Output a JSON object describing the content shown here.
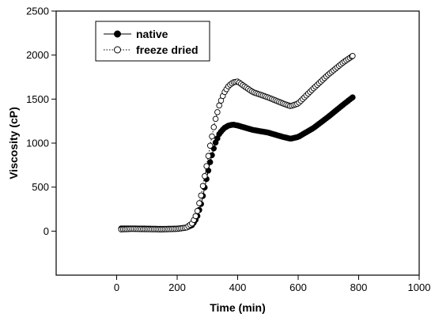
{
  "chart_data": {
    "type": "line",
    "xlabel": "Time (min)",
    "ylabel": "Viscosity (cP)",
    "xlim": [
      -200,
      1000
    ],
    "ylim": [
      -500,
      2500
    ],
    "xticks": [
      0,
      200,
      400,
      600,
      800,
      1000
    ],
    "yticks": [
      0,
      500,
      1000,
      1500,
      2000,
      2500
    ],
    "grid": false,
    "legend_position": "top-left",
    "series": [
      {
        "name": "native",
        "marker": "filled-circle",
        "line": "solid",
        "color": "#000000",
        "points": [
          [
            15,
            30
          ],
          [
            50,
            30
          ],
          [
            100,
            28
          ],
          [
            150,
            25
          ],
          [
            200,
            28
          ],
          [
            230,
            40
          ],
          [
            250,
            70
          ],
          [
            265,
            150
          ],
          [
            280,
            320
          ],
          [
            295,
            560
          ],
          [
            310,
            800
          ],
          [
            325,
            990
          ],
          [
            340,
            1110
          ],
          [
            355,
            1170
          ],
          [
            370,
            1200
          ],
          [
            385,
            1210
          ],
          [
            400,
            1200
          ],
          [
            420,
            1180
          ],
          [
            450,
            1150
          ],
          [
            500,
            1120
          ],
          [
            550,
            1070
          ],
          [
            575,
            1050
          ],
          [
            600,
            1070
          ],
          [
            650,
            1170
          ],
          [
            700,
            1300
          ],
          [
            750,
            1440
          ],
          [
            780,
            1520
          ]
        ]
      },
      {
        "name": "freeze dried",
        "marker": "open-circle",
        "line": "dotted",
        "color": "#000000",
        "points": [
          [
            15,
            20
          ],
          [
            50,
            25
          ],
          [
            100,
            22
          ],
          [
            150,
            20
          ],
          [
            200,
            25
          ],
          [
            230,
            40
          ],
          [
            250,
            90
          ],
          [
            265,
            200
          ],
          [
            280,
            420
          ],
          [
            295,
            700
          ],
          [
            310,
            990
          ],
          [
            325,
            1250
          ],
          [
            340,
            1440
          ],
          [
            355,
            1570
          ],
          [
            370,
            1650
          ],
          [
            385,
            1690
          ],
          [
            400,
            1700
          ],
          [
            420,
            1650
          ],
          [
            450,
            1580
          ],
          [
            500,
            1520
          ],
          [
            550,
            1450
          ],
          [
            575,
            1420
          ],
          [
            600,
            1450
          ],
          [
            650,
            1620
          ],
          [
            700,
            1780
          ],
          [
            750,
            1920
          ],
          [
            780,
            1990
          ]
        ]
      }
    ]
  }
}
